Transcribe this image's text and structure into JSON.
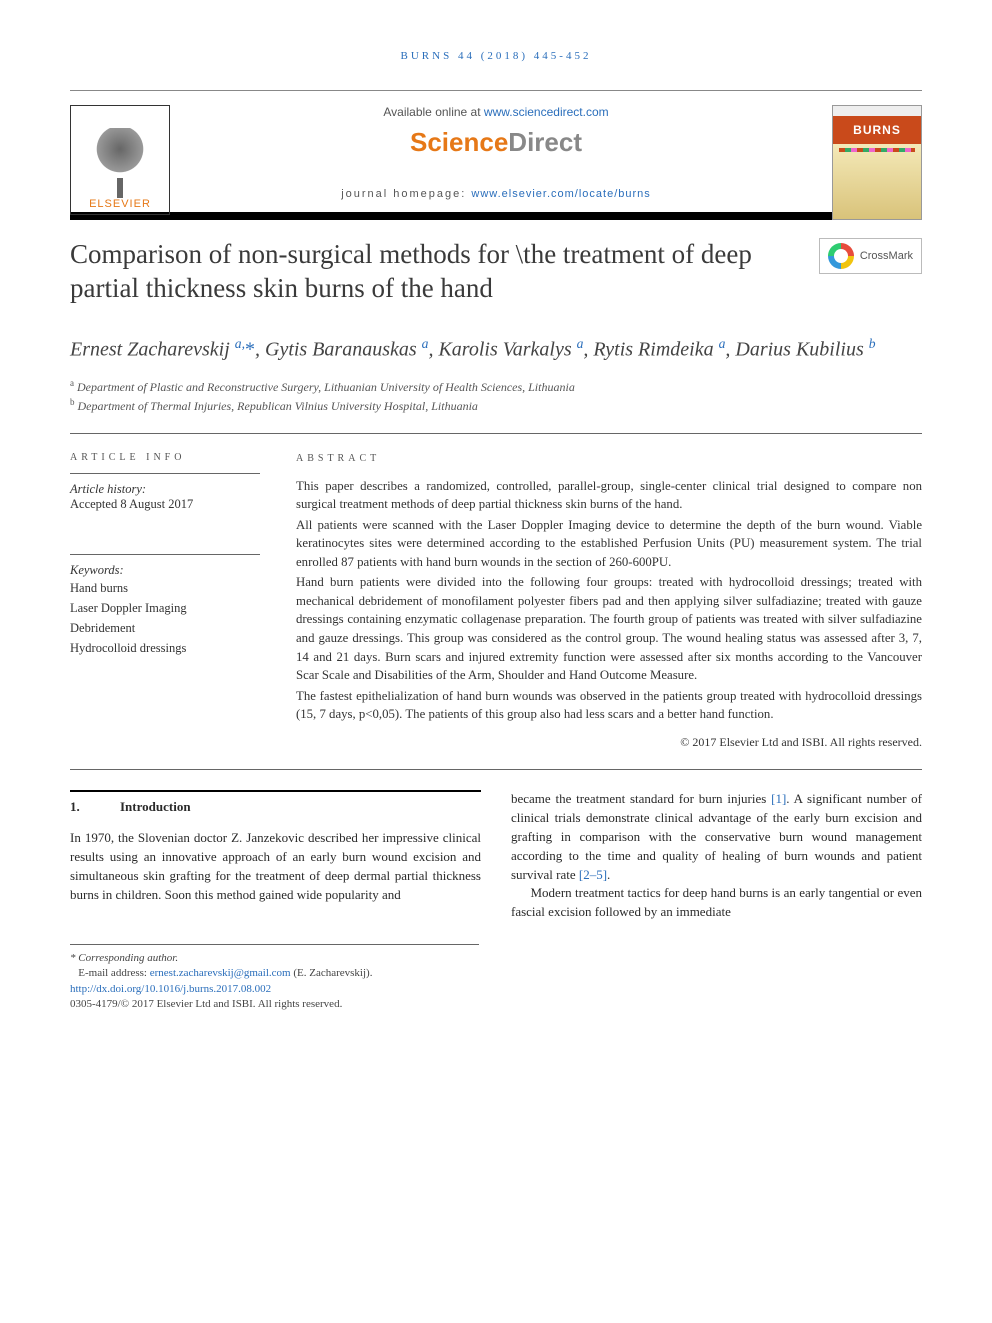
{
  "running_head": "BURNS 44 (2018) 445-452",
  "header": {
    "available_prefix": "Available online at ",
    "available_link": "www.sciencedirect.com",
    "sd_brand_a": "Science",
    "sd_brand_b": "Direct",
    "homepage_prefix": "journal homepage: ",
    "homepage_link": "www.elsevier.com/locate/burns",
    "elsevier_label": "ELSEVIER",
    "cover_title": "BURNS"
  },
  "crossmark_label": "CrossMark",
  "title": "Comparison of non-surgical methods for \\the treatment of deep partial thickness skin burns of the hand",
  "authors_html": "Ernest Zacharevskij <sup class='aff-sup'>a,</sup><span class='corr-star'>*</span>, Gytis Baranauskas <sup class='aff-sup'>a</sup>, Karolis Varkalys <sup class='aff-sup'>a</sup>, Rytis Rimdeika <sup class='aff-sup'>a</sup>, Darius Kubilius <sup class='aff-sup'>b</sup>",
  "affiliations": {
    "a": "Department of Plastic and Reconstructive Surgery, Lithuanian University of Health Sciences, Lithuania",
    "b": "Department of Thermal Injuries, Republican Vilnius University Hospital, Lithuania"
  },
  "article_info": {
    "heading": "ARTICLE INFO",
    "history_label": "Article history:",
    "accepted": "Accepted 8 August 2017",
    "keywords_label": "Keywords:",
    "keywords": [
      "Hand burns",
      "Laser Doppler Imaging",
      "Debridement",
      "Hydrocolloid dressings"
    ]
  },
  "abstract": {
    "heading": "ABSTRACT",
    "paragraphs": [
      "This paper describes a randomized, controlled, parallel-group, single-center clinical trial designed to compare non surgical treatment methods of deep partial thickness skin burns of the hand.",
      "All patients were scanned with the Laser Doppler Imaging device to determine the depth of the burn wound. Viable keratinocytes sites were determined according to the established Perfusion Units (PU) measurement system. The trial enrolled 87 patients with hand burn wounds in the section of 260-600PU.",
      "Hand burn patients were divided into the following four groups: treated with hydrocolloid dressings; treated with mechanical debridement of monofilament polyester fibers pad and then applying silver sulfadiazine; treated with gauze dressings containing enzymatic collagenase preparation. The fourth group of patients was treated with silver sulfadiazine and gauze dressings. This group was considered as the control group. The wound healing status was assessed after 3, 7, 14 and 21 days. Burn scars and injured extremity function were assessed after six months according to the Vancouver Scar Scale and Disabilities of the Arm, Shoulder and Hand Outcome Measure.",
      "The fastest epithelialization of hand burn wounds was observed in the patients group treated with hydrocolloid dressings (15, 7 days, p<0,05). The patients of this group also had less scars and a better hand function."
    ],
    "copyright": "© 2017 Elsevier Ltd and ISBI. All rights reserved."
  },
  "section1": {
    "number": "1.",
    "title": "Introduction",
    "para1": "In 1970, the Slovenian doctor Z. Janzekovic described her impressive clinical results using an innovative approach of an early burn wound excision and simultaneous skin grafting for the treatment of deep dermal partial thickness burns in children. Soon this method gained wide popularity and",
    "para2_a": "became the treatment standard for burn injuries ",
    "ref1": "[1]",
    "para2_b": ". A significant number of clinical trials demonstrate clinical advantage of the early burn excision and grafting in comparison with the conservative burn wound management according to the time and quality of healing of burn wounds and patient survival rate ",
    "ref2": "[2–5]",
    "para2_c": ".",
    "para3": "Modern treatment tactics for deep hand burns is an early tangential or even fascial excision followed by an immediate"
  },
  "footnotes": {
    "corr_label": "* Corresponding author.",
    "email_label": "E-mail address: ",
    "email": "ernest.zacharevskij@gmail.com",
    "email_paren": " (E. Zacharevskij).",
    "doi": "http://dx.doi.org/10.1016/j.burns.2017.08.002",
    "issn_line": "0305-4179/© 2017 Elsevier Ltd and ISBI. All rights reserved."
  },
  "colors": {
    "link": "#2a6ebb",
    "accent": "#e67817",
    "text": "#2a2a2a"
  }
}
